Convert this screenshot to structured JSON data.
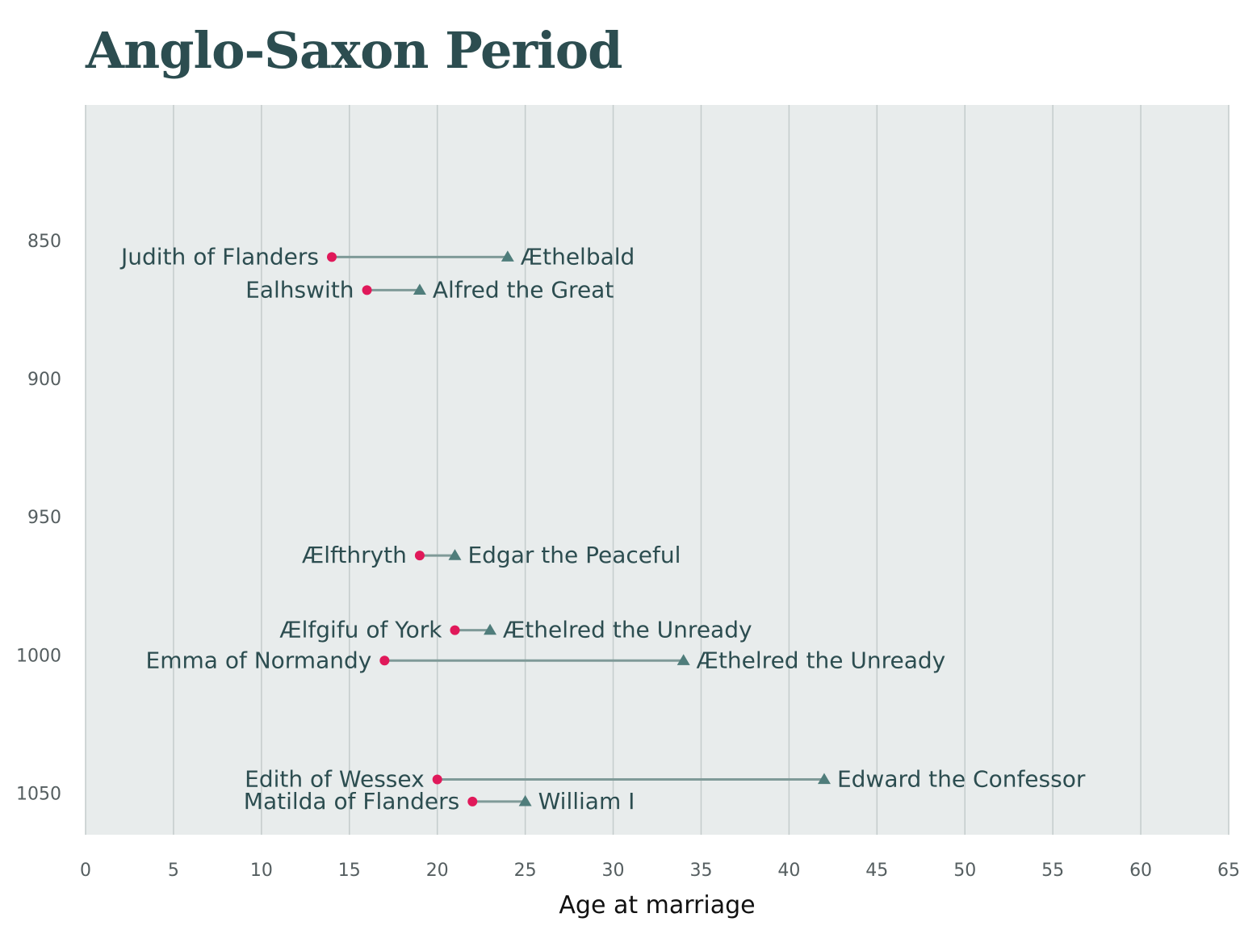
{
  "chart_data": {
    "type": "dumbbell",
    "title": "Anglo-Saxon Period",
    "xlabel": "Age at marriage",
    "ylabel": "",
    "xlim": [
      0,
      65
    ],
    "ylim": [
      1065,
      801
    ],
    "x_ticks": [
      0,
      5,
      10,
      15,
      20,
      25,
      30,
      35,
      40,
      45,
      50,
      55,
      60,
      65
    ],
    "y_ticks": [
      850,
      900,
      950,
      1000,
      1050
    ],
    "grid": "vertical",
    "colors": {
      "panel": "#e8ecec",
      "grid": "#c4cccc",
      "wife": "#e0195a",
      "husband": "#4f7d7b",
      "connector": "#7f9a98",
      "text": "#2c4d50"
    },
    "marriages": [
      {
        "year": 856,
        "wife": "Judith of Flanders",
        "wife_age": 14,
        "husband": "Æthelbald",
        "husband_age": 24
      },
      {
        "year": 868,
        "wife": "Ealhswith",
        "wife_age": 16,
        "husband": "Alfred the Great",
        "husband_age": 19
      },
      {
        "year": 964,
        "wife": "Ælfthryth",
        "wife_age": 19,
        "husband": "Edgar the Peaceful",
        "husband_age": 21
      },
      {
        "year": 991,
        "wife": "Ælfgifu of York",
        "wife_age": 21,
        "husband": "Æthelred the Unready",
        "husband_age": 23
      },
      {
        "year": 1002,
        "wife": "Emma of Normandy",
        "wife_age": 17,
        "husband": "Æthelred the Unready",
        "husband_age": 34
      },
      {
        "year": 1045,
        "wife": "Edith of Wessex",
        "wife_age": 20,
        "husband": "Edward the Confessor",
        "husband_age": 42
      },
      {
        "year": 1053,
        "wife": "Matilda of Flanders",
        "wife_age": 22,
        "husband": "William I",
        "husband_age": 25
      }
    ]
  }
}
